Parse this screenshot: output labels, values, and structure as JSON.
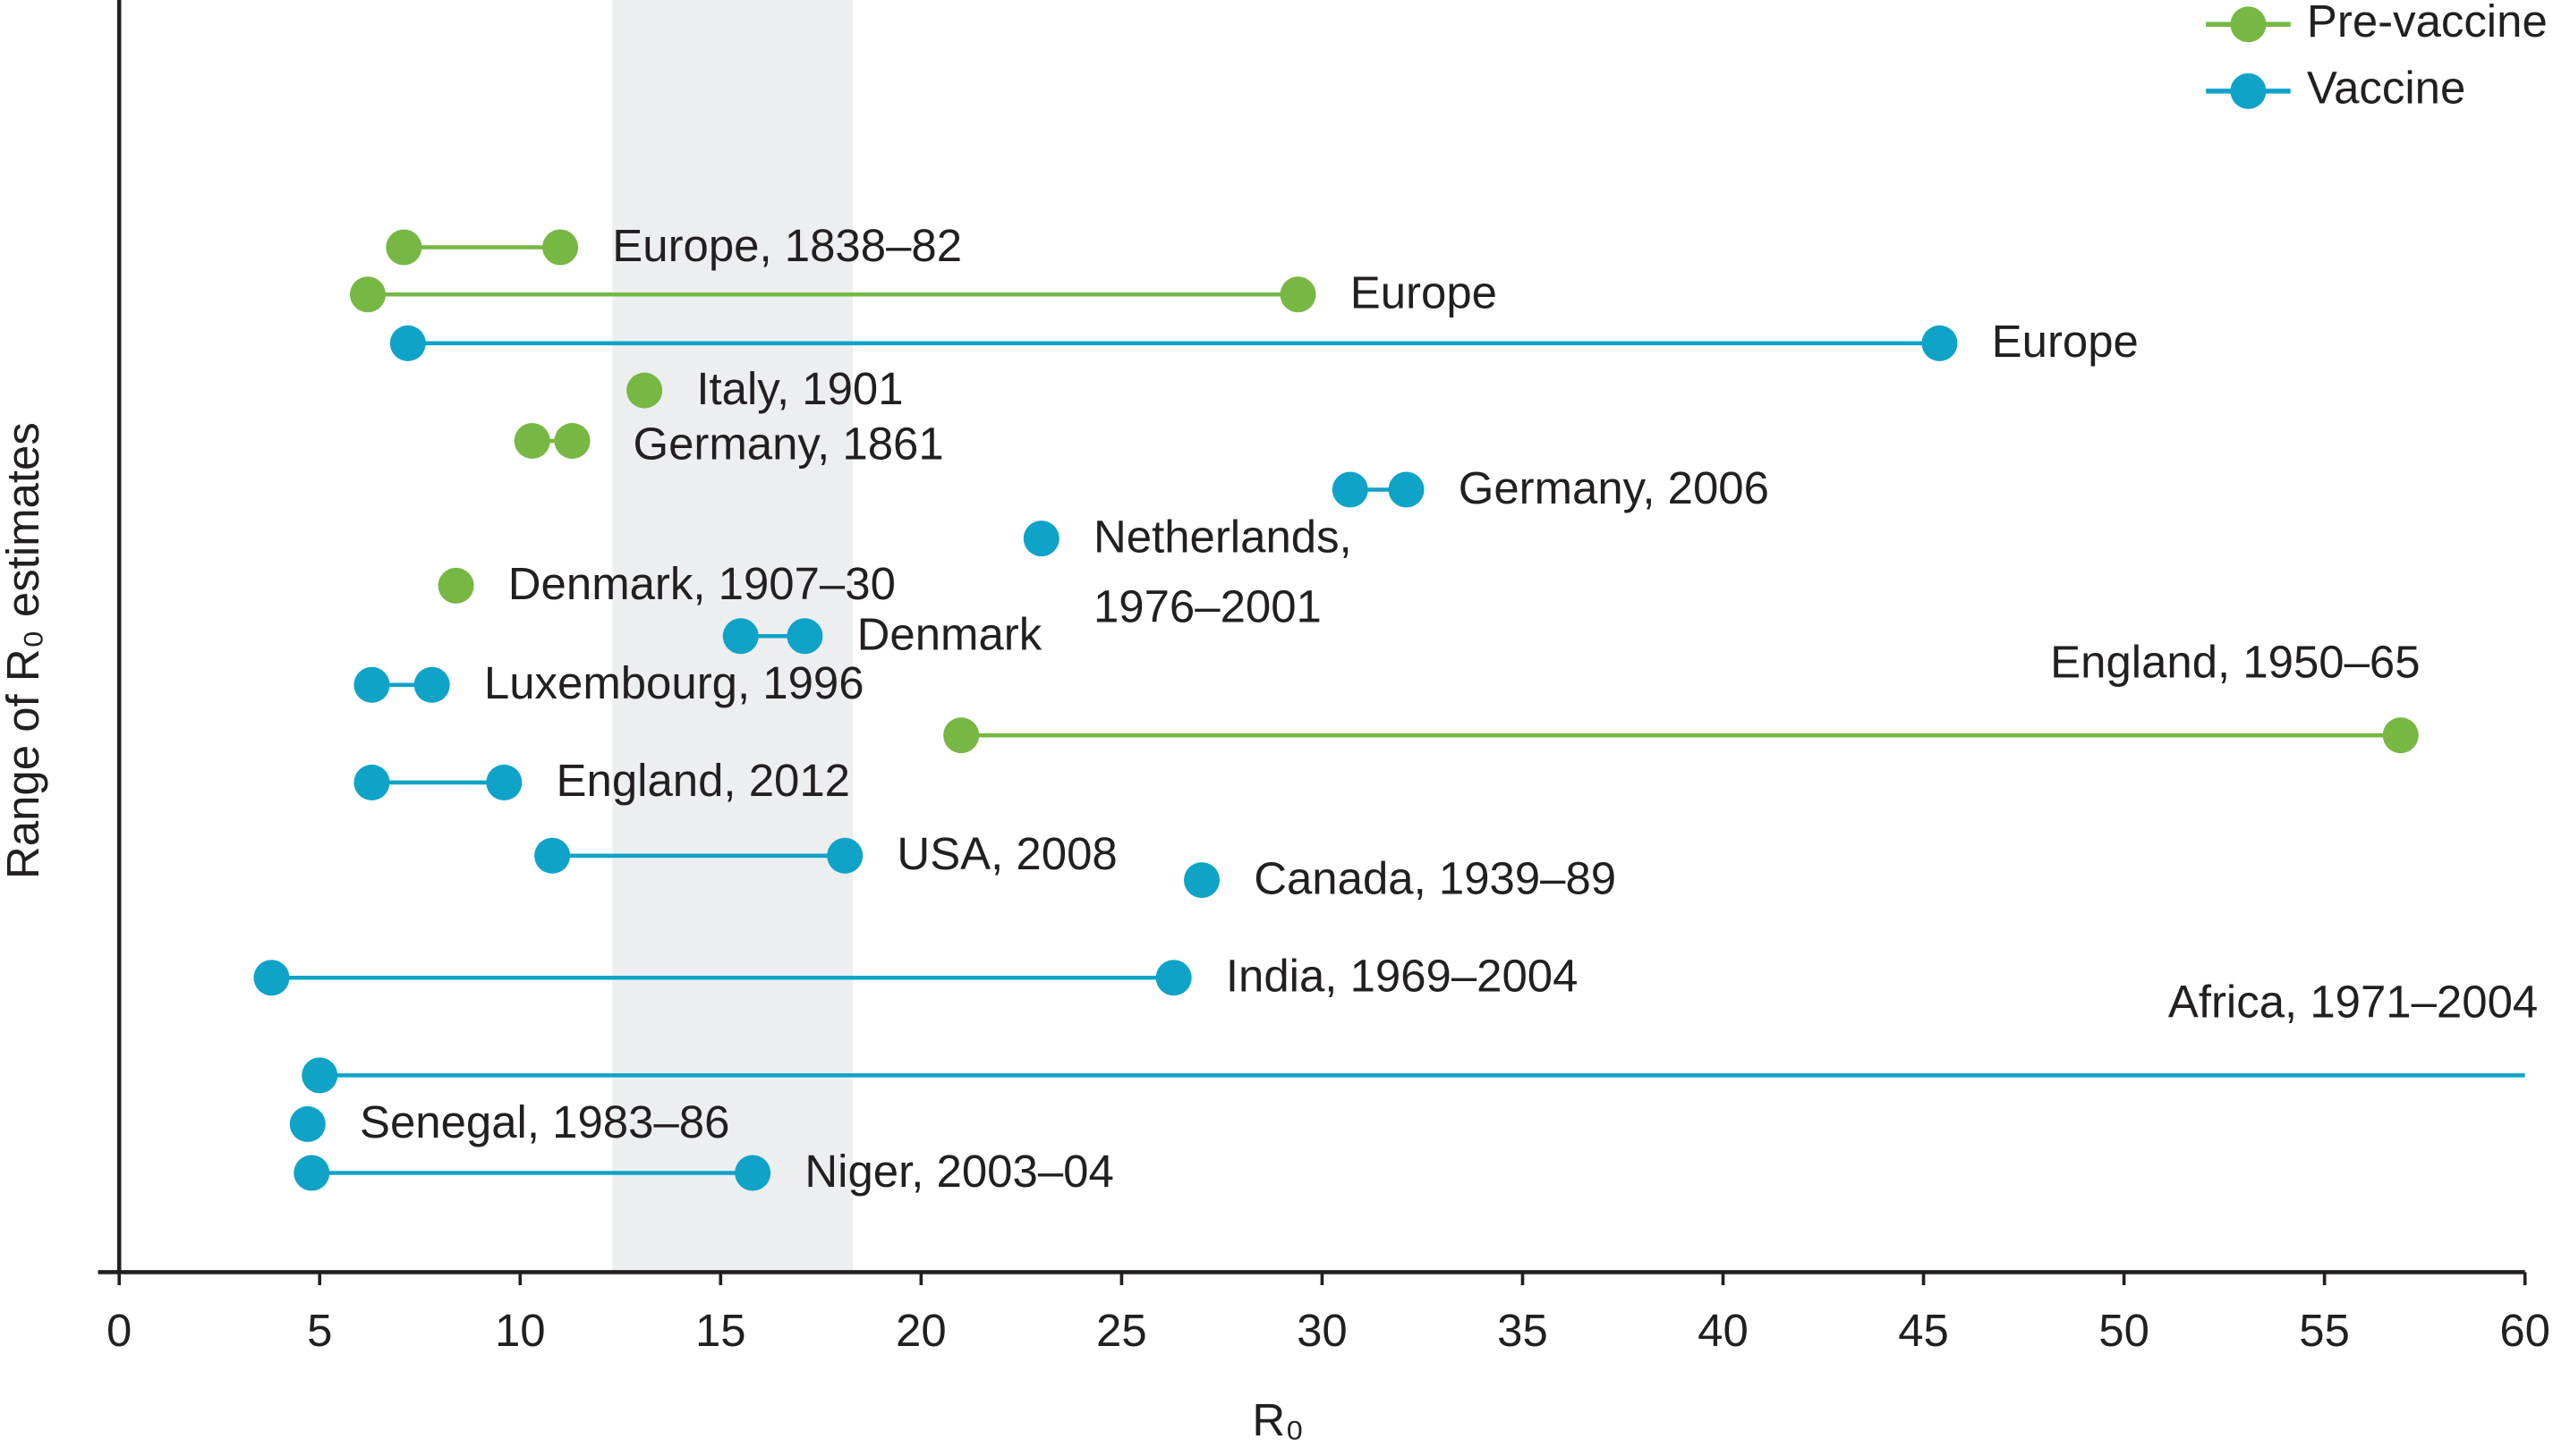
{
  "chart_data": {
    "type": "dumbbell",
    "xlabel": "R₀",
    "ylabel": "Range of R₀ estimates",
    "xlim": [
      0,
      60
    ],
    "xticks": [
      0,
      5,
      10,
      15,
      20,
      25,
      30,
      35,
      40,
      45,
      50,
      55,
      60
    ],
    "shaded_range": [
      12.3,
      18.3
    ],
    "legend": "top-right",
    "series": [
      {
        "name": "Pre-vaccine",
        "color": "#76b843",
        "items": [
          {
            "label": "Europe, 1838–82",
            "values": [
              7.1,
              11.0
            ]
          },
          {
            "label": "Europe",
            "values": [
              6.2,
              29.4
            ]
          },
          {
            "label": "Italy, 1901",
            "values": [
              13.1
            ]
          },
          {
            "label": "Germany, 1861",
            "values": [
              10.3,
              11.3
            ]
          },
          {
            "label": "Denmark, 1907–30",
            "values": [
              8.4
            ]
          },
          {
            "label": "England, 1950–65",
            "values": [
              21.0,
              56.9
            ]
          }
        ]
      },
      {
        "name": "Vaccine",
        "color": "#0fa3c8",
        "items": [
          {
            "label": "Europe",
            "values": [
              7.2,
              45.4
            ]
          },
          {
            "label": "Germany, 2006",
            "values": [
              30.7,
              32.1
            ]
          },
          {
            "label": [
              "Netherlands,",
              "1976–2001"
            ],
            "values": [
              23.0
            ]
          },
          {
            "label": "Denmark",
            "values": [
              15.5,
              17.1
            ]
          },
          {
            "label": "Luxembourg, 1996",
            "values": [
              6.3,
              7.8
            ]
          },
          {
            "label": "England, 2012",
            "values": [
              6.3,
              9.6
            ]
          },
          {
            "label": "USA, 2008",
            "values": [
              10.8,
              18.1
            ]
          },
          {
            "label": "Canada, 1939–89",
            "values": [
              27.0
            ]
          },
          {
            "label": "India, 1969–2004",
            "values": [
              3.8,
              26.3
            ]
          },
          {
            "label": "Africa, 1971–2004",
            "values": [
              5.0,
              60
            ],
            "open_upper": true
          },
          {
            "label": "Senegal, 1983–86",
            "values": [
              4.7
            ]
          },
          {
            "label": "Niger, 2003–04",
            "values": [
              4.8,
              15.8
            ]
          }
        ]
      }
    ]
  }
}
